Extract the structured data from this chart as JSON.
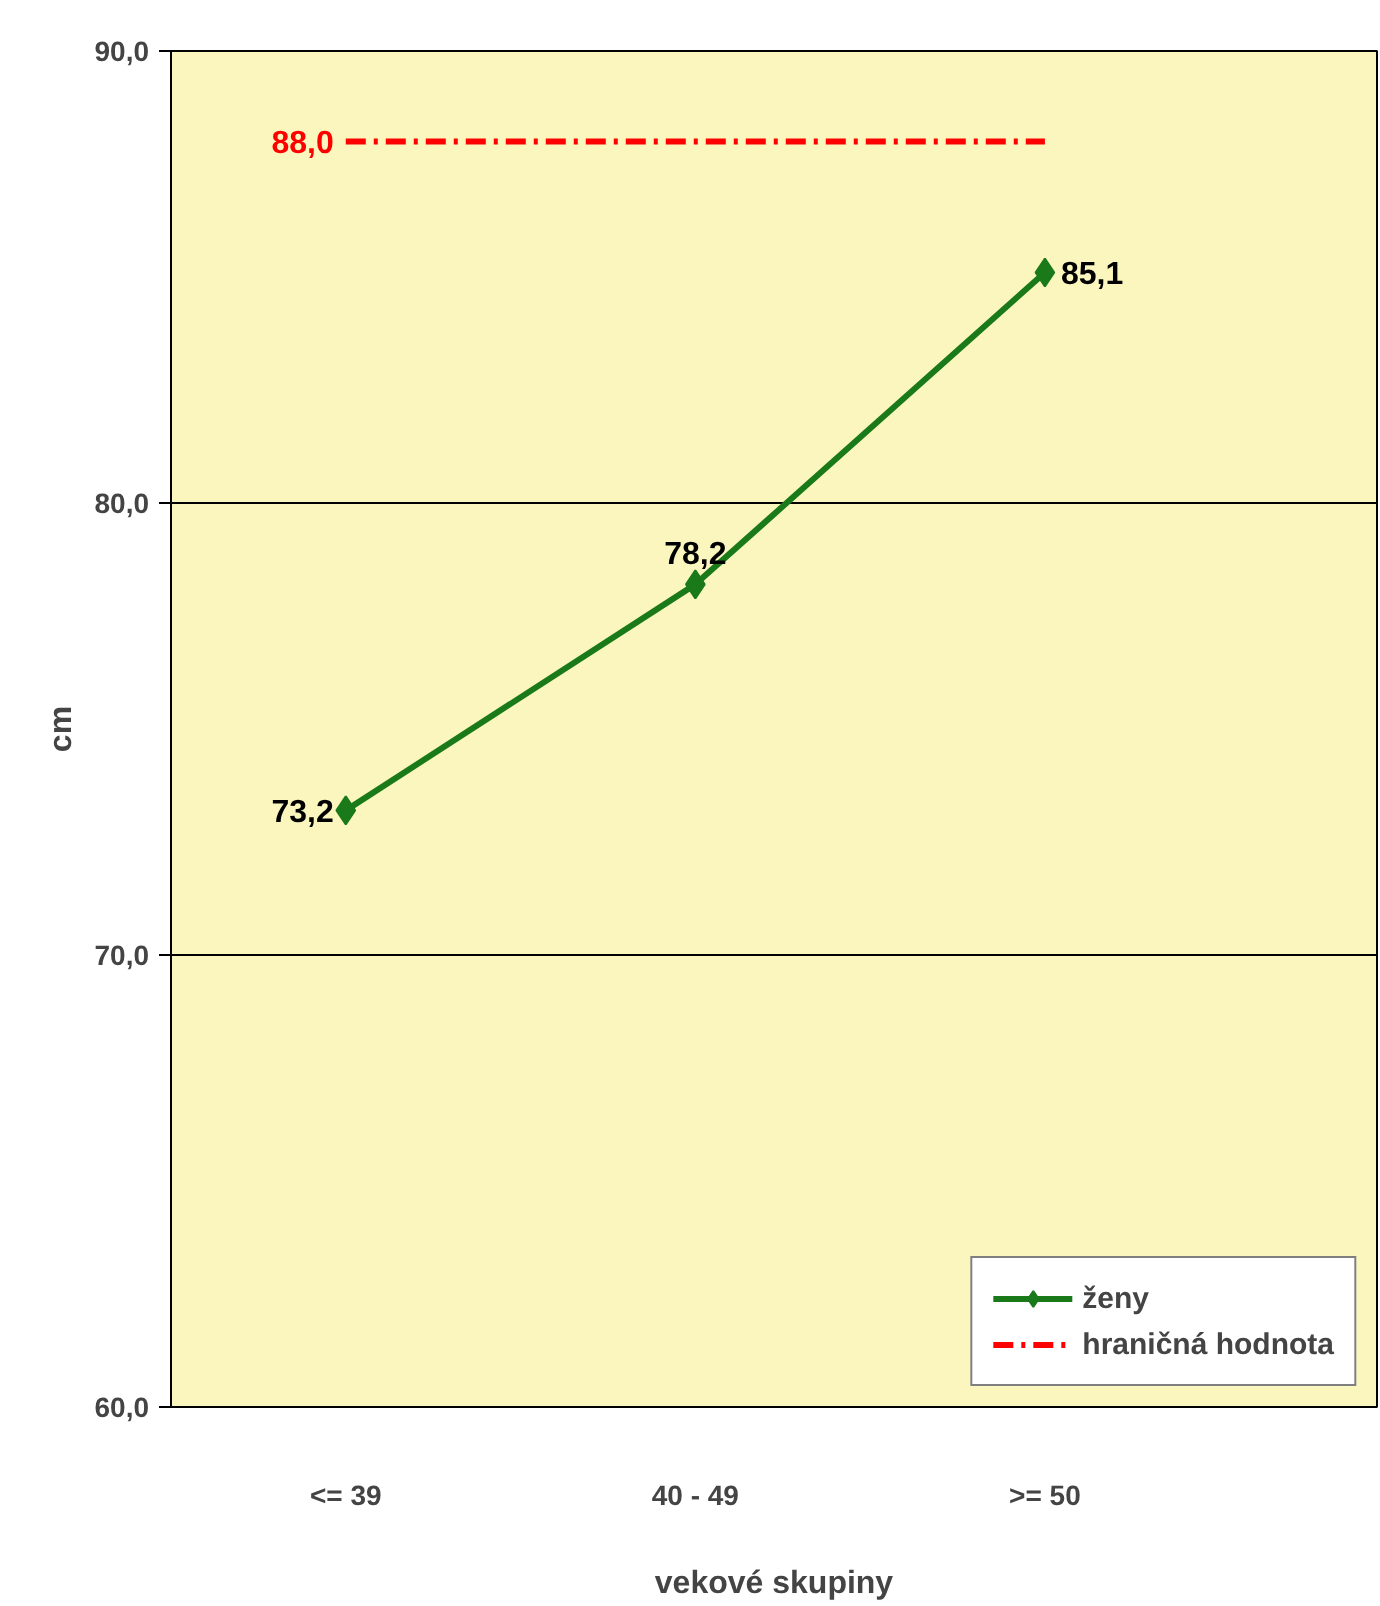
{
  "chart_data": {
    "type": "line",
    "xlabel": "vekové skupiny",
    "ylabel": "cm",
    "categories": [
      "<= 39",
      "40 - 49",
      ">= 50"
    ],
    "series": [
      {
        "name": "ženy",
        "color": "#1a7a1a",
        "values": [
          73.2,
          78.2,
          85.1
        ],
        "value_labels": [
          "73,2",
          "78,2",
          "85,1"
        ],
        "marker": "diamond",
        "line_style": "solid"
      },
      {
        "name": "hraničná hodnota",
        "color": "#ff0000",
        "values": [
          88.0,
          88.0,
          88.0
        ],
        "value_labels": [
          "88,0",
          null,
          null
        ],
        "marker": "none",
        "line_style": "dashed"
      }
    ],
    "ylim": [
      60,
      90
    ],
    "yticks": [
      {
        "value": 60,
        "label": "60,0"
      },
      {
        "value": 70,
        "label": "70,0"
      },
      {
        "value": 80,
        "label": "80,0"
      },
      {
        "value": 90,
        "label": "90,0"
      }
    ],
    "grid": "y",
    "legend": "bottom right"
  }
}
